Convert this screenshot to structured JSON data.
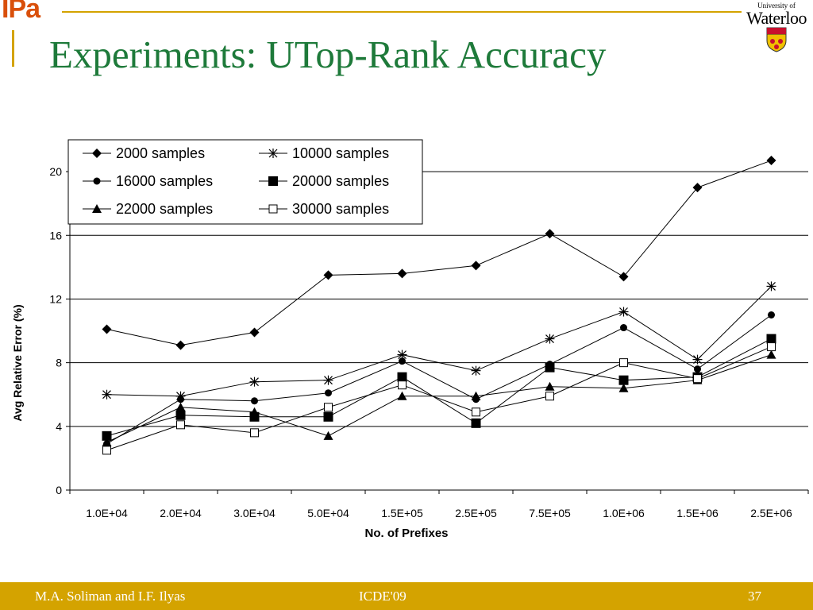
{
  "header": {
    "logo_text": "IPa",
    "university_small": "University of",
    "university_name": "Waterloo"
  },
  "slide": {
    "title": "Experiments: UTop-Rank Accuracy"
  },
  "footer": {
    "authors": "M.A. Soliman and I.F. Ilyas",
    "venue": "ICDE'09",
    "page_number": "37"
  },
  "chart_data": {
    "type": "line",
    "xlabel": "No. of Prefixes",
    "ylabel": "Avg Relative Error (%)",
    "categories": [
      "1.0E+04",
      "2.0E+04",
      "3.0E+04",
      "5.0E+04",
      "1.5E+05",
      "2.5E+05",
      "7.5E+05",
      "1.0E+06",
      "1.5E+06",
      "2.5E+06"
    ],
    "ylim": [
      0,
      22
    ],
    "yticks": [
      0,
      4,
      8,
      12,
      16,
      20
    ],
    "grid": "horizontal",
    "legend_position": "top-left",
    "series": [
      {
        "name": "2000 samples",
        "marker": "diamond",
        "values": [
          10.1,
          9.1,
          9.9,
          13.5,
          13.6,
          14.1,
          16.1,
          13.4,
          19.0,
          20.7
        ]
      },
      {
        "name": "10000 samples",
        "marker": "star",
        "values": [
          6.0,
          5.9,
          6.8,
          6.9,
          8.5,
          7.5,
          9.5,
          11.2,
          8.2,
          12.8
        ]
      },
      {
        "name": "16000 samples",
        "marker": "circle",
        "values": [
          2.9,
          5.7,
          5.6,
          6.1,
          8.1,
          5.7,
          7.9,
          10.2,
          7.6,
          11.0
        ]
      },
      {
        "name": "20000 samples",
        "marker": "square",
        "values": [
          3.4,
          4.7,
          4.6,
          4.6,
          7.1,
          4.2,
          7.7,
          6.9,
          7.1,
          9.5
        ]
      },
      {
        "name": "22000 samples",
        "marker": "triangle",
        "values": [
          3.0,
          5.2,
          4.9,
          3.4,
          5.9,
          5.9,
          6.5,
          6.4,
          6.9,
          8.5
        ]
      },
      {
        "name": "30000 samples",
        "marker": "square-open",
        "values": [
          2.5,
          4.1,
          3.6,
          5.2,
          6.6,
          4.9,
          5.9,
          8.0,
          7.0,
          9.0
        ]
      }
    ]
  }
}
